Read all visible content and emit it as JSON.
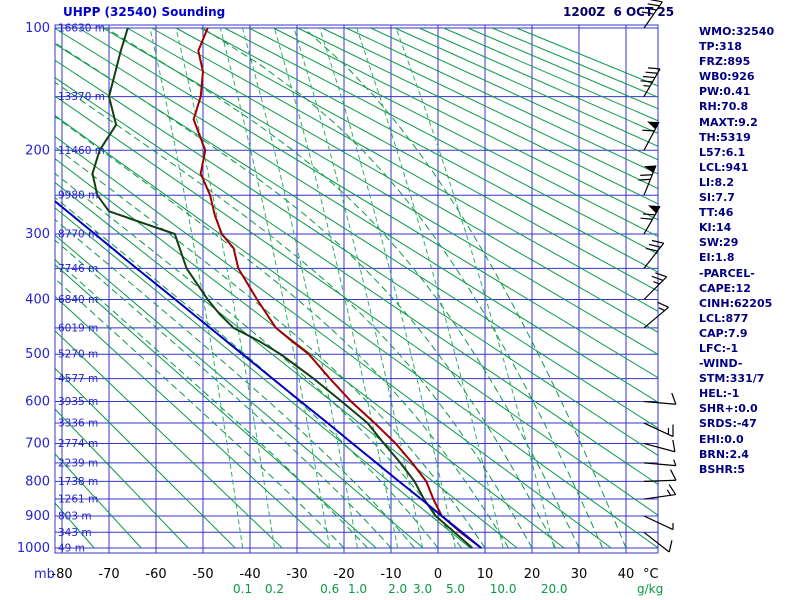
{
  "header": {
    "title": "UHPP (32540) Sounding",
    "datetime": "1200Z  6 OCT 25"
  },
  "stats_panel": {
    "lines": [
      "WMO:32540",
      "TP:318",
      "FRZ:895",
      "WB0:926",
      "PW:0.41",
      "RH:70.8",
      "MAXT:9.2",
      "TH:5319",
      "L57:6.1",
      "LCL:941",
      "LI:8.2",
      "SI:7.7",
      "TT:46",
      "KI:14",
      "SW:29",
      "EI:1.8",
      "-PARCEL-",
      "CAPE:12",
      "CINH:62205",
      "LCL:877",
      "CAP:7.9",
      "LFC:-1",
      "-WIND-",
      "STM:331/7",
      "HEL:-1",
      "SHR+:0.0",
      "SRDS:-47",
      "EHI:0.0",
      "BRN:2.4",
      "BSHR:5"
    ]
  },
  "chart_data": {
    "type": "line",
    "subtype": "stuve-sounding",
    "title": "UHPP (32540) Sounding",
    "x_axis": {
      "label": "°C",
      "ticks": [
        -80,
        -70,
        -60,
        -50,
        -40,
        -30,
        -20,
        -10,
        0,
        10,
        20,
        30,
        40
      ]
    },
    "y_axis": {
      "label": "mb",
      "ticks": [
        100,
        200,
        300,
        400,
        500,
        600,
        700,
        800,
        900,
        1000
      ],
      "grid_step_mb": 50,
      "scale": "p^0.286",
      "range": [
        100,
        1000
      ]
    },
    "mixing_ratio_axis": {
      "label": "g/kg",
      "ticks": [
        "0.1",
        "0.2",
        "0.6",
        "1.0",
        "2.0",
        "3.0",
        "5.0",
        "10.0",
        "20.0"
      ]
    },
    "height_labels": [
      {
        "p": 100,
        "label": "16630 m"
      },
      {
        "p": 150,
        "label": "13370 m"
      },
      {
        "p": 200,
        "label": "11460 m"
      },
      {
        "p": 250,
        "label": "9980 m"
      },
      {
        "p": 300,
        "label": "8770 m"
      },
      {
        "p": 350,
        "label": "7746 m"
      },
      {
        "p": 400,
        "label": "6840 m"
      },
      {
        "p": 450,
        "label": "6019 m"
      },
      {
        "p": 500,
        "label": "5270 m"
      },
      {
        "p": 550,
        "label": "4577 m"
      },
      {
        "p": 600,
        "label": "3935 m"
      },
      {
        "p": 650,
        "label": "3336 m"
      },
      {
        "p": 700,
        "label": "2774 m"
      },
      {
        "p": 750,
        "label": "2239 m"
      },
      {
        "p": 800,
        "label": "1738 m"
      },
      {
        "p": 850,
        "label": "1261 m"
      },
      {
        "p": 900,
        "label": "803 m"
      },
      {
        "p": 950,
        "label": "343 m"
      },
      {
        "p": 1000,
        "label": "49 m"
      }
    ],
    "dry_adiabats_K": {
      "start": 200,
      "end": 560,
      "step": 10
    },
    "moist_adiabats_C": [
      -20,
      -15,
      -10,
      -5,
      0,
      5,
      10,
      15,
      20,
      25,
      30,
      35,
      40
    ],
    "series": [
      {
        "name": "temperature",
        "color": "#a00000",
        "points": [
          [
            100,
            -49
          ],
          [
            115,
            -51
          ],
          [
            130,
            -50
          ],
          [
            150,
            -50.5
          ],
          [
            170,
            -52
          ],
          [
            200,
            -49.5
          ],
          [
            225,
            -50.5
          ],
          [
            250,
            -48.5
          ],
          [
            275,
            -47.5
          ],
          [
            300,
            -46
          ],
          [
            320,
            -43.5
          ],
          [
            350,
            -42.5
          ],
          [
            400,
            -38.5
          ],
          [
            450,
            -34.5
          ],
          [
            475,
            -31
          ],
          [
            500,
            -27.5
          ],
          [
            550,
            -23
          ],
          [
            600,
            -18.5
          ],
          [
            650,
            -13.5
          ],
          [
            700,
            -9
          ],
          [
            750,
            -5.5
          ],
          [
            800,
            -2.5
          ],
          [
            850,
            -1
          ],
          [
            900,
            0.8
          ],
          [
            950,
            4.8
          ],
          [
            1000,
            9.2
          ]
        ]
      },
      {
        "name": "dewpoint",
        "color": "#143f14",
        "points": [
          [
            100,
            -66
          ],
          [
            115,
            -67.5
          ],
          [
            150,
            -70
          ],
          [
            175,
            -68.5
          ],
          [
            200,
            -72
          ],
          [
            225,
            -73.5
          ],
          [
            250,
            -72.5
          ],
          [
            270,
            -70
          ],
          [
            300,
            -56
          ],
          [
            350,
            -53.5
          ],
          [
            400,
            -49
          ],
          [
            425,
            -46.5
          ],
          [
            450,
            -43.5
          ],
          [
            475,
            -38
          ],
          [
            500,
            -33.5
          ],
          [
            550,
            -26.5
          ],
          [
            600,
            -20.5
          ],
          [
            650,
            -15
          ],
          [
            700,
            -11.5
          ],
          [
            750,
            -8
          ],
          [
            800,
            -5
          ],
          [
            850,
            -3
          ],
          [
            900,
            -0.5
          ],
          [
            950,
            3.5
          ],
          [
            1000,
            7.3
          ]
        ]
      },
      {
        "name": "parcel",
        "color": "#0000c0",
        "points": [
          [
            255,
            -82
          ],
          [
            300,
            -73
          ],
          [
            350,
            -64.1
          ],
          [
            400,
            -55.9
          ],
          [
            450,
            -48.5
          ],
          [
            500,
            -41.6
          ],
          [
            550,
            -35.2
          ],
          [
            600,
            -29.2
          ],
          [
            650,
            -23.5
          ],
          [
            700,
            -18.2
          ],
          [
            750,
            -13.1
          ],
          [
            800,
            -8.3
          ],
          [
            850,
            -3.6
          ],
          [
            900,
            0.8
          ],
          [
            950,
            5.1
          ],
          [
            1000,
            9.2
          ]
        ]
      }
    ],
    "winds": [
      {
        "p": 100,
        "angle": 35,
        "pennants": 0,
        "full": 4,
        "half": 0
      },
      {
        "p": 150,
        "angle": 30,
        "pennants": 0,
        "full": 4,
        "half": 1
      },
      {
        "p": 200,
        "angle": 28,
        "pennants": 1,
        "full": 1,
        "half": 0
      },
      {
        "p": 250,
        "angle": 22,
        "pennants": 1,
        "full": 2,
        "half": 0
      },
      {
        "p": 300,
        "angle": 30,
        "pennants": 1,
        "full": 2,
        "half": 0
      },
      {
        "p": 350,
        "angle": 38,
        "pennants": 0,
        "full": 3,
        "half": 0
      },
      {
        "p": 400,
        "angle": 45,
        "pennants": 0,
        "full": 2,
        "half": 1
      },
      {
        "p": 450,
        "angle": 50,
        "pennants": 0,
        "full": 1,
        "half": 1
      },
      {
        "p": 600,
        "angle": 95,
        "pennants": 0,
        "full": 1,
        "half": 0
      },
      {
        "p": 650,
        "angle": 115,
        "pennants": 0,
        "full": 1,
        "half": 1
      },
      {
        "p": 700,
        "angle": 105,
        "pennants": 0,
        "full": 1,
        "half": 0
      },
      {
        "p": 750,
        "angle": 95,
        "pennants": 0,
        "full": 0,
        "half": 1
      },
      {
        "p": 800,
        "angle": 88,
        "pennants": 0,
        "full": 1,
        "half": 0
      },
      {
        "p": 850,
        "angle": 82,
        "pennants": 0,
        "full": 1,
        "half": 1
      },
      {
        "p": 900,
        "angle": 115,
        "pennants": 0,
        "full": 0,
        "half": 1
      },
      {
        "p": 950,
        "angle": 128,
        "pennants": 0,
        "full": 1,
        "half": 0
      }
    ],
    "colors": {
      "grid": "#3535cd",
      "adiabat": "#0a9a46",
      "mixing": "#2fae6a",
      "moist": "#0a9a46",
      "axis_text": "#2424cc",
      "temp_text": "#000000",
      "mixing_text": "#0a9a46",
      "barb": "#000000"
    }
  }
}
